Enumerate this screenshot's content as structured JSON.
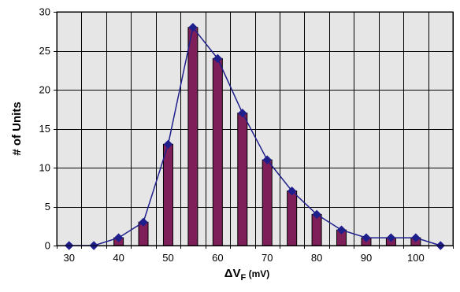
{
  "chart_data": {
    "type": "bar",
    "x": [
      30,
      35,
      40,
      45,
      50,
      55,
      60,
      65,
      70,
      75,
      80,
      85,
      90,
      95,
      100,
      105
    ],
    "values": [
      0,
      0,
      1,
      3,
      13,
      28,
      24,
      17,
      11,
      7,
      4,
      2,
      1,
      1,
      1,
      0
    ],
    "line_overlay": true,
    "x_tick_labels": [
      "30",
      "40",
      "50",
      "60",
      "70",
      "80",
      "90",
      "100"
    ],
    "y_tick_labels": [
      "0",
      "5",
      "10",
      "15",
      "20",
      "25",
      "30"
    ],
    "ylim": [
      0,
      30
    ],
    "xlim": [
      27.5,
      107.5
    ],
    "xlabel_main": "ΔV",
    "xlabel_sub": "F",
    "xlabel_unit": " (mV)",
    "ylabel": "# of Units",
    "grid": true,
    "colors": {
      "plot_bg": "#e6e6e6",
      "grid": "#000000",
      "bar_fill": "#7f1f5a",
      "line": "#1f1f8c",
      "marker": "#1f1f8c"
    }
  }
}
